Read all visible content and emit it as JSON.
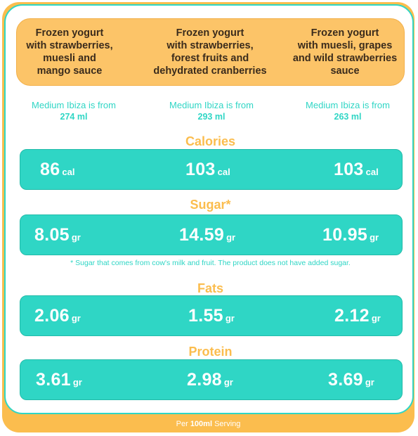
{
  "products": [
    {
      "lines": [
        "Frozen yogurt",
        "with strawberries,",
        "muesli and",
        "mango sauce"
      ]
    },
    {
      "lines": [
        "Frozen yogurt",
        "with strawberries,",
        "forest fruits and",
        "dehydrated cranberries"
      ]
    },
    {
      "lines": [
        "Frozen yogurt",
        "with muesli, grapes",
        "and wild strawberries",
        "sauce"
      ]
    }
  ],
  "medium": [
    {
      "label": "Medium Ibiza is from",
      "volume": "274 ml"
    },
    {
      "label": "Medium Ibiza is from",
      "volume": "293 ml"
    },
    {
      "label": "Medium Ibiza is from",
      "volume": "263 ml"
    }
  ],
  "calories": {
    "title": "Calories",
    "unit": "cal",
    "values": [
      "86",
      "103",
      "103"
    ]
  },
  "sugar": {
    "title": "Sugar*",
    "unit": "gr",
    "values": [
      "8.05",
      "14.59",
      "10.95"
    ],
    "note": "* Sugar that comes from cow's milk and fruit. The product does not have added sugar."
  },
  "fats": {
    "title": "Fats",
    "unit": "gr",
    "values": [
      "2.06",
      "1.55",
      "2.12"
    ]
  },
  "protein": {
    "title": "Protein",
    "unit": "gr",
    "values": [
      "3.61",
      "2.98",
      "3.69"
    ]
  },
  "footer": {
    "prefix": "Per",
    "bold": "100ml",
    "suffix": "Serving"
  },
  "colors": {
    "teal": "#2fd6c5",
    "orange": "#fbbd4e",
    "header": "#fcc468"
  }
}
